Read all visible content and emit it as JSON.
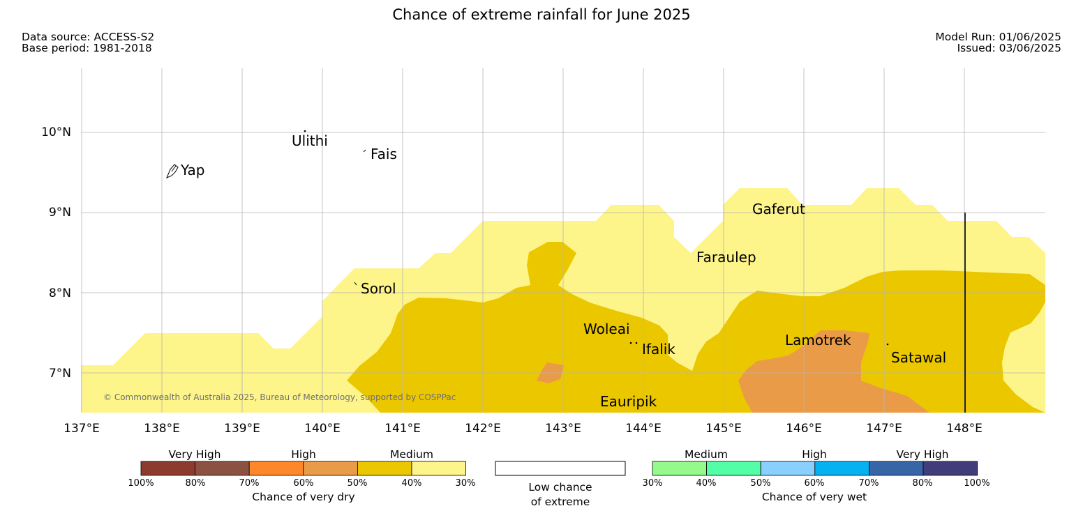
{
  "header": {
    "title": "Chance of extreme rainfall for June 2025",
    "data_source": "Data source: ACCESS-S2",
    "base_period": "Base period: 1981-2018",
    "model_run": "Model Run: 01/06/2025",
    "issued": "Issued: 03/06/2025"
  },
  "map": {
    "lon_ticks": [
      "137°E",
      "138°E",
      "139°E",
      "140°E",
      "141°E",
      "142°E",
      "143°E",
      "144°E",
      "145°E",
      "146°E",
      "147°E",
      "148°E"
    ],
    "lat_ticks": [
      "10°N",
      "9°N",
      "8°N",
      "7°N"
    ],
    "lon_range": [
      137,
      149
    ],
    "lat_range": [
      6.5,
      10.8
    ],
    "copyright": "© Commonwealth of Australia 2025, Bureau of Meteorology, supported by COSPPac",
    "places": [
      {
        "name": "Yap",
        "lon": 138.05,
        "lat": 9.5
      },
      {
        "name": "Ulithi",
        "lon": 139.75,
        "lat": 10.0
      },
      {
        "name": "Fais",
        "lon": 140.52,
        "lat": 9.76
      },
      {
        "name": "Gaferut",
        "lon": 145.4,
        "lat": 9.2
      },
      {
        "name": "Faraulep",
        "lon": 144.6,
        "lat": 8.6
      },
      {
        "name": "Sorol",
        "lon": 140.4,
        "lat": 8.13
      },
      {
        "name": "Woleai",
        "lon": 143.9,
        "lat": 7.37
      },
      {
        "name": "Ifalik",
        "lon": 144.45,
        "lat": 7.25
      },
      {
        "name": "Lamotrek",
        "lon": 146.35,
        "lat": 7.5
      },
      {
        "name": "Satawal",
        "lon": 147.03,
        "lat": 7.37
      },
      {
        "name": "Eauripik",
        "lon": 143.05,
        "lat": 6.7
      }
    ],
    "colors": {
      "medium_30_40": "#fdf48a",
      "medium_40_50": "#ebc700",
      "high_50_60": "#ea9b48",
      "boundary_line": "#000000",
      "grid": "#b5b5b5"
    }
  },
  "legend": {
    "dry": {
      "groups": [
        "Very High",
        "High",
        "Medium"
      ],
      "ticks": [
        "100%",
        "80%",
        "70%",
        "60%",
        "50%",
        "40%",
        "30%"
      ],
      "colors": [
        "#8e3b2f",
        "#8b5242",
        "#fe8729",
        "#ea9b48",
        "#ebc700",
        "#fdf48a"
      ],
      "label": "Chance of very dry"
    },
    "low": {
      "line1": "Low chance",
      "line2": "of extreme",
      "color": "#ffffff"
    },
    "wet": {
      "groups": [
        "Medium",
        "High",
        "Very High"
      ],
      "ticks": [
        "30%",
        "40%",
        "50%",
        "60%",
        "70%",
        "80%",
        "100%"
      ],
      "colors": [
        "#95f98b",
        "#53fea6",
        "#89cfff",
        "#05b1f0",
        "#3865a5",
        "#413c7a"
      ],
      "label": "Chance of very wet"
    }
  }
}
